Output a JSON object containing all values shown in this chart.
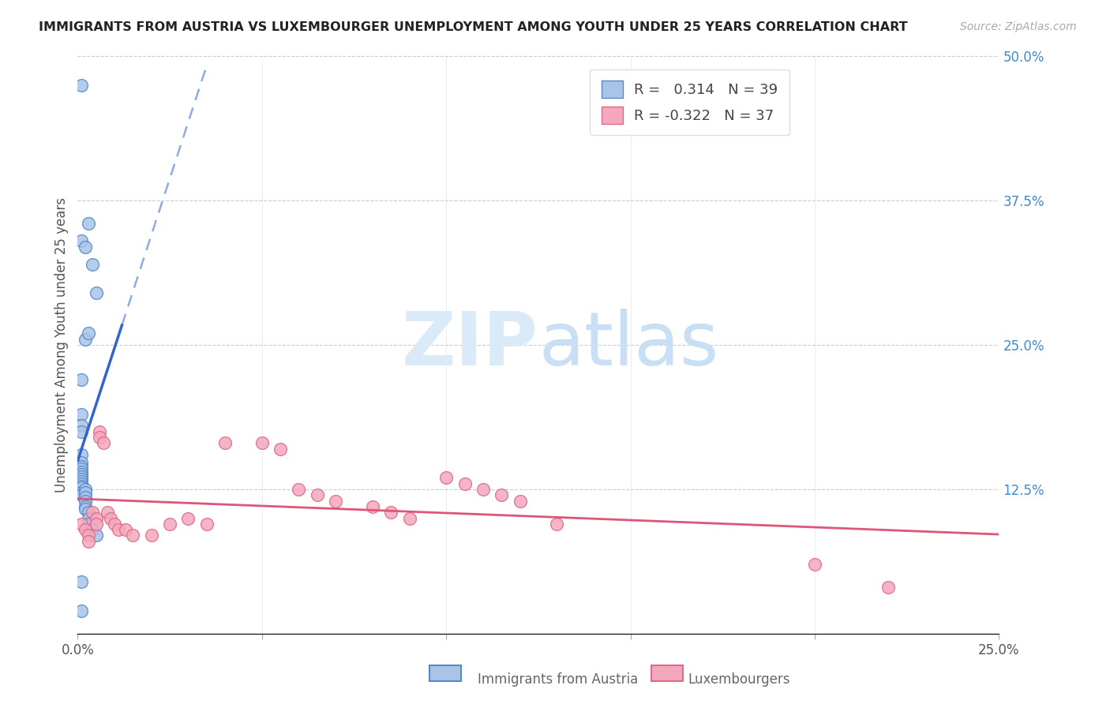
{
  "title": "IMMIGRANTS FROM AUSTRIA VS LUXEMBOURGER UNEMPLOYMENT AMONG YOUTH UNDER 25 YEARS CORRELATION CHART",
  "source": "Source: ZipAtlas.com",
  "ylabel": "Unemployment Among Youth under 25 years",
  "xlim": [
    0.0,
    0.25
  ],
  "ylim": [
    0.0,
    0.5
  ],
  "xticks": [
    0.0,
    0.05,
    0.1,
    0.15,
    0.2,
    0.25
  ],
  "xticklabels": [
    "0.0%",
    "",
    "",
    "",
    "",
    "25.0%"
  ],
  "yticks_right": [
    0.0,
    0.125,
    0.25,
    0.375,
    0.5
  ],
  "yticklabels_right": [
    "",
    "12.5%",
    "25.0%",
    "37.5%",
    "50.0%"
  ],
  "background_color": "#ffffff",
  "austria_color": "#aac4e8",
  "luxembourg_color": "#f4a8be",
  "austria_edge_color": "#5588cc",
  "luxembourg_edge_color": "#e06888",
  "trendline_austria_color": "#3366cc",
  "trendline_luxembourg_color": "#dd5577",
  "R_austria": 0.314,
  "N_austria": 39,
  "R_luxembourg": -0.322,
  "N_luxembourg": 37,
  "legend_label_austria": "Immigrants from Austria",
  "legend_label_luxembourg": "Luxembourgers",
  "austria_x": [
    0.001,
    0.003,
    0.004,
    0.005,
    0.001,
    0.002,
    0.002,
    0.003,
    0.001,
    0.001,
    0.001,
    0.001,
    0.001,
    0.001,
    0.001,
    0.001,
    0.001,
    0.001,
    0.001,
    0.001,
    0.001,
    0.001,
    0.001,
    0.001,
    0.001,
    0.001,
    0.002,
    0.002,
    0.002,
    0.002,
    0.002,
    0.002,
    0.003,
    0.003,
    0.003,
    0.004,
    0.005,
    0.001,
    0.001
  ],
  "austria_y": [
    0.475,
    0.355,
    0.32,
    0.295,
    0.34,
    0.335,
    0.255,
    0.26,
    0.22,
    0.19,
    0.18,
    0.175,
    0.155,
    0.148,
    0.145,
    0.143,
    0.14,
    0.138,
    0.136,
    0.134,
    0.132,
    0.13,
    0.128,
    0.126,
    0.122,
    0.12,
    0.125,
    0.122,
    0.118,
    0.115,
    0.11,
    0.108,
    0.105,
    0.1,
    0.095,
    0.09,
    0.085,
    0.045,
    0.02
  ],
  "luxembourg_x": [
    0.001,
    0.002,
    0.003,
    0.003,
    0.004,
    0.005,
    0.005,
    0.006,
    0.006,
    0.007,
    0.008,
    0.009,
    0.01,
    0.011,
    0.013,
    0.015,
    0.02,
    0.025,
    0.03,
    0.035,
    0.04,
    0.05,
    0.055,
    0.06,
    0.065,
    0.07,
    0.08,
    0.085,
    0.09,
    0.1,
    0.105,
    0.11,
    0.115,
    0.12,
    0.13,
    0.2,
    0.22
  ],
  "luxembourg_y": [
    0.095,
    0.09,
    0.085,
    0.08,
    0.105,
    0.1,
    0.095,
    0.175,
    0.17,
    0.165,
    0.105,
    0.1,
    0.095,
    0.09,
    0.09,
    0.085,
    0.085,
    0.095,
    0.1,
    0.095,
    0.165,
    0.165,
    0.16,
    0.125,
    0.12,
    0.115,
    0.11,
    0.105,
    0.1,
    0.135,
    0.13,
    0.125,
    0.12,
    0.115,
    0.095,
    0.06,
    0.04
  ],
  "trendline_austria_solid_xmax": 0.012,
  "trendline_austria_dashed_xmax": 0.25
}
